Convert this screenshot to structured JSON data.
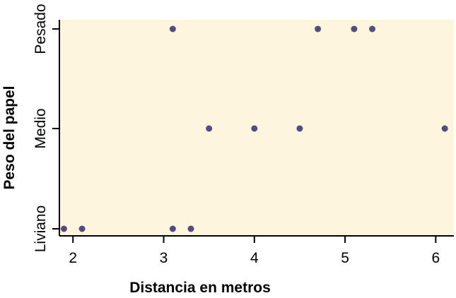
{
  "chart_data": {
    "type": "scatter",
    "title": "",
    "xlabel": "Distancia en metros",
    "ylabel": "Peso del papel",
    "xlim": [
      1.85,
      6.2
    ],
    "xticks": [
      2,
      3,
      4,
      5,
      6
    ],
    "categories": [
      "Liviano",
      "Medio",
      "Pesado"
    ],
    "points": [
      {
        "x": 1.9,
        "y": "Liviano"
      },
      {
        "x": 2.1,
        "y": "Liviano"
      },
      {
        "x": 3.1,
        "y": "Liviano"
      },
      {
        "x": 3.3,
        "y": "Liviano"
      },
      {
        "x": 3.5,
        "y": "Medio"
      },
      {
        "x": 4.0,
        "y": "Medio"
      },
      {
        "x": 4.5,
        "y": "Medio"
      },
      {
        "x": 6.1,
        "y": "Medio"
      },
      {
        "x": 3.1,
        "y": "Pesado"
      },
      {
        "x": 4.7,
        "y": "Pesado"
      },
      {
        "x": 5.1,
        "y": "Pesado"
      },
      {
        "x": 5.3,
        "y": "Pesado"
      }
    ],
    "grid": false,
    "colors": {
      "plot_background": "#fdf5dc",
      "point": "#544a86",
      "axis": "#000000"
    }
  }
}
